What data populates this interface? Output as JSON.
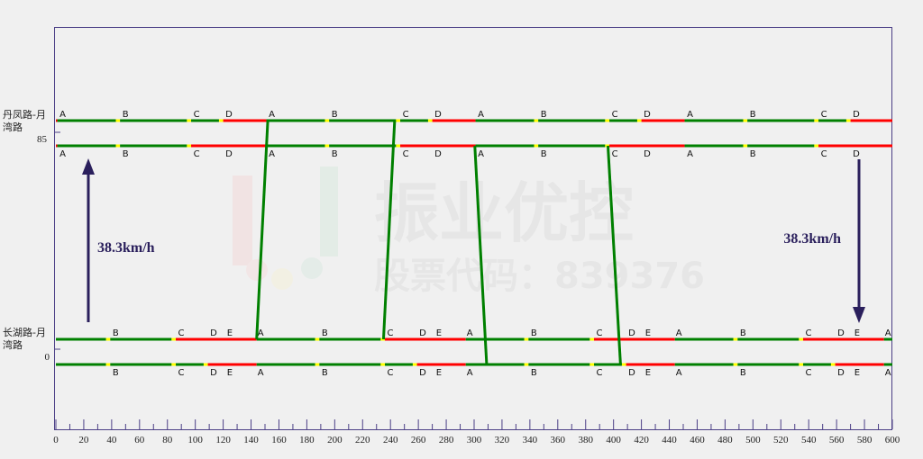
{
  "watermark": {
    "name": "振业优控",
    "code": "股票代码：839376"
  },
  "colors": {
    "green": "#008000",
    "yellow": "#ffff00",
    "red": "#ff0000",
    "frame": "#4b3f86",
    "arrow": "#2a1f5c"
  },
  "x_axis": {
    "min": 0,
    "max": 600,
    "major_step": 20,
    "minor_step": 10
  },
  "intersections": [
    {
      "name_line1": "丹凤路-月",
      "name_line2": "湾路",
      "position": "85",
      "cycle": 150,
      "offset": 1,
      "upper": {
        "segments": [
          [
            0,
            42,
            "green"
          ],
          [
            42,
            45,
            "yellow"
          ],
          [
            45,
            93,
            "green"
          ],
          [
            93,
            96,
            "yellow"
          ],
          [
            96,
            116,
            "green"
          ],
          [
            116,
            119,
            "yellow"
          ],
          [
            119,
            150,
            "red"
          ]
        ]
      },
      "lower": {
        "segments": [
          [
            0,
            42,
            "green"
          ],
          [
            42,
            45,
            "yellow"
          ],
          [
            45,
            93,
            "green"
          ],
          [
            93,
            96,
            "yellow"
          ],
          [
            96,
            150,
            "red"
          ]
        ]
      },
      "labels": [
        [
          1,
          "A"
        ],
        [
          46,
          "B"
        ],
        [
          97,
          "C"
        ],
        [
          120,
          "D"
        ]
      ]
    },
    {
      "name_line1": "长湖路-月",
      "name_line2": "湾路",
      "position": "0",
      "cycle": 150,
      "offset": -6,
      "upper": {
        "segments": [
          [
            0,
            42,
            "green"
          ],
          [
            42,
            45,
            "yellow"
          ],
          [
            45,
            89,
            "green"
          ],
          [
            89,
            92,
            "yellow"
          ],
          [
            92,
            150,
            "red"
          ]
        ]
      },
      "lower": {
        "segments": [
          [
            0,
            42,
            "green"
          ],
          [
            42,
            45,
            "yellow"
          ],
          [
            45,
            89,
            "green"
          ],
          [
            89,
            92,
            "yellow"
          ],
          [
            92,
            112,
            "green"
          ],
          [
            112,
            115,
            "yellow"
          ],
          [
            115,
            150,
            "red"
          ]
        ]
      },
      "labels": [
        [
          150,
          "A"
        ],
        [
          46,
          "B"
        ],
        [
          93,
          "C"
        ],
        [
          116,
          "D"
        ],
        [
          128,
          "E"
        ]
      ]
    }
  ],
  "green_bands": [
    {
      "t_start": 144,
      "t_end": 152,
      "direction": "up"
    },
    {
      "t_start": 235,
      "t_end": 243,
      "direction": "up"
    },
    {
      "t_start": 300.5,
      "t_end": 309,
      "direction": "down"
    },
    {
      "t_start": 396,
      "t_end": 405,
      "direction": "down"
    }
  ],
  "speeds": {
    "up": "38.3km/h",
    "down": "38.3km/h"
  }
}
